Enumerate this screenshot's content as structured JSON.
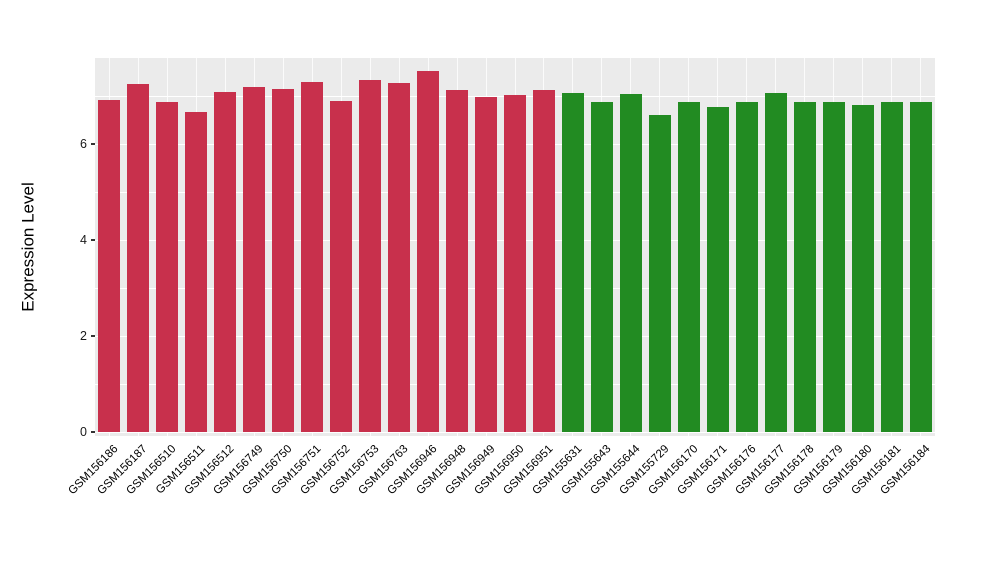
{
  "chart_data": {
    "type": "bar",
    "title": "",
    "xlabel": "",
    "ylabel": "Expression Level",
    "ylim": [
      0,
      7.79
    ],
    "yticks_major": [
      0,
      2,
      4,
      6
    ],
    "yticks_minor": [
      1,
      3,
      5,
      7
    ],
    "grid": true,
    "legend_position": "none",
    "panel_bg": "#EBEBEB",
    "grid_color": "#FFFFFF",
    "categories": [
      "GSM156186",
      "GSM156187",
      "GSM156510",
      "GSM156511",
      "GSM156512",
      "GSM156749",
      "GSM156750",
      "GSM156751",
      "GSM156752",
      "GSM156753",
      "GSM156763",
      "GSM156946",
      "GSM156948",
      "GSM156949",
      "GSM156950",
      "GSM156951",
      "GSM155631",
      "GSM155643",
      "GSM155644",
      "GSM155729",
      "GSM156170",
      "GSM156171",
      "GSM156176",
      "GSM156177",
      "GSM156178",
      "GSM156179",
      "GSM156180",
      "GSM156181",
      "GSM156184"
    ],
    "values": [
      6.92,
      7.24,
      6.88,
      6.67,
      7.09,
      7.18,
      7.15,
      7.28,
      6.9,
      7.34,
      7.26,
      7.51,
      7.13,
      6.97,
      7.01,
      7.13,
      7.07,
      6.88,
      7.03,
      6.61,
      6.88,
      6.76,
      6.88,
      7.07,
      6.88,
      6.88,
      6.82,
      6.88,
      6.88
    ],
    "groups": [
      "red",
      "red",
      "red",
      "red",
      "red",
      "red",
      "red",
      "red",
      "red",
      "red",
      "red",
      "red",
      "red",
      "red",
      "red",
      "red",
      "green",
      "green",
      "green",
      "green",
      "green",
      "green",
      "green",
      "green",
      "green",
      "green",
      "green",
      "green",
      "green"
    ],
    "group_colors": {
      "red": "#C8304C",
      "green": "#228B22"
    }
  }
}
